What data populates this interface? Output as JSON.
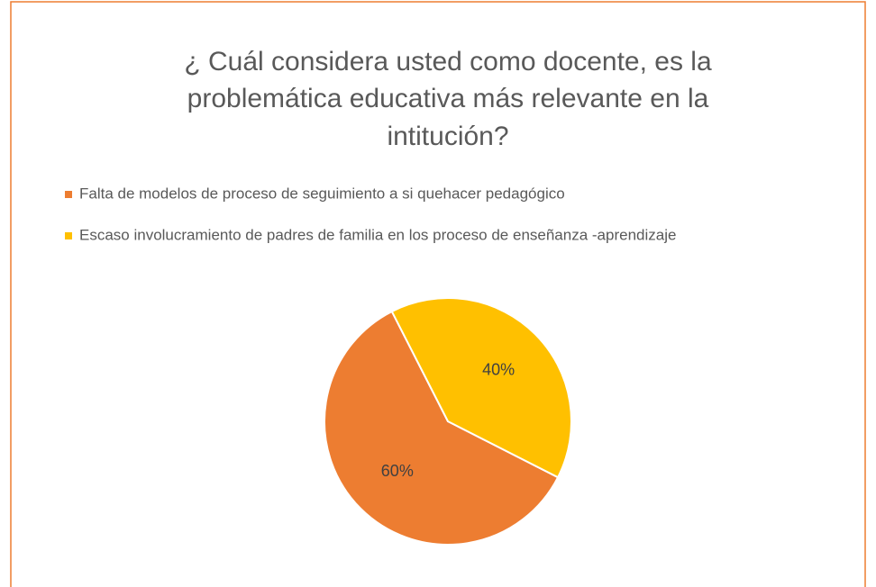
{
  "chart_data": {
    "type": "pie",
    "title": [
      "¿ Cuál considera usted como docente, es la",
      "problemática educativa más relevante en la",
      "intitución?"
    ],
    "categories": [
      "Falta de modelos de proceso de seguimiento a si quehacer pedagógico",
      "Escaso involucramiento de padres de familia en los proceso de enseñanza -aprendizaje"
    ],
    "values": [
      60,
      40
    ],
    "value_labels": [
      "60%",
      "40%"
    ],
    "colors": [
      "#ED7D31",
      "#FFC000"
    ],
    "legend": "top"
  }
}
